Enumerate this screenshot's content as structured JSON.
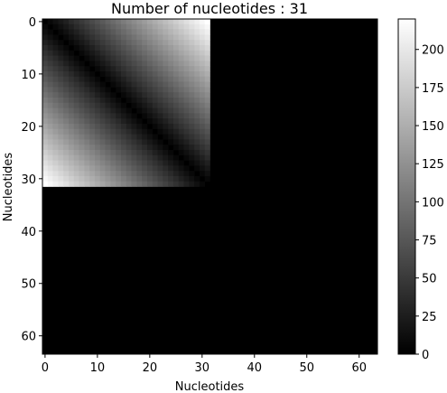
{
  "chart_data": {
    "type": "heatmap",
    "title": "Number of nucleotides : 31",
    "xlabel": "Nucleotides",
    "ylabel": "Nucleotides",
    "matrix_size": 64,
    "filled_size": 32,
    "value_rule": "z = round(|i - j| * 7.1) for i, j < 32, otherwise 0",
    "xlim": [
      0,
      64
    ],
    "ylim": [
      64,
      0
    ],
    "x_ticks": [
      0,
      10,
      20,
      30,
      40,
      50,
      60
    ],
    "y_ticks": [
      0,
      10,
      20,
      30,
      40,
      50,
      60
    ],
    "colormap": "gray",
    "vmin": 0,
    "vmax": 220,
    "colorbar_ticks": [
      0,
      25,
      50,
      75,
      100,
      125,
      150,
      175,
      200
    ],
    "colorbar_position": "right"
  }
}
